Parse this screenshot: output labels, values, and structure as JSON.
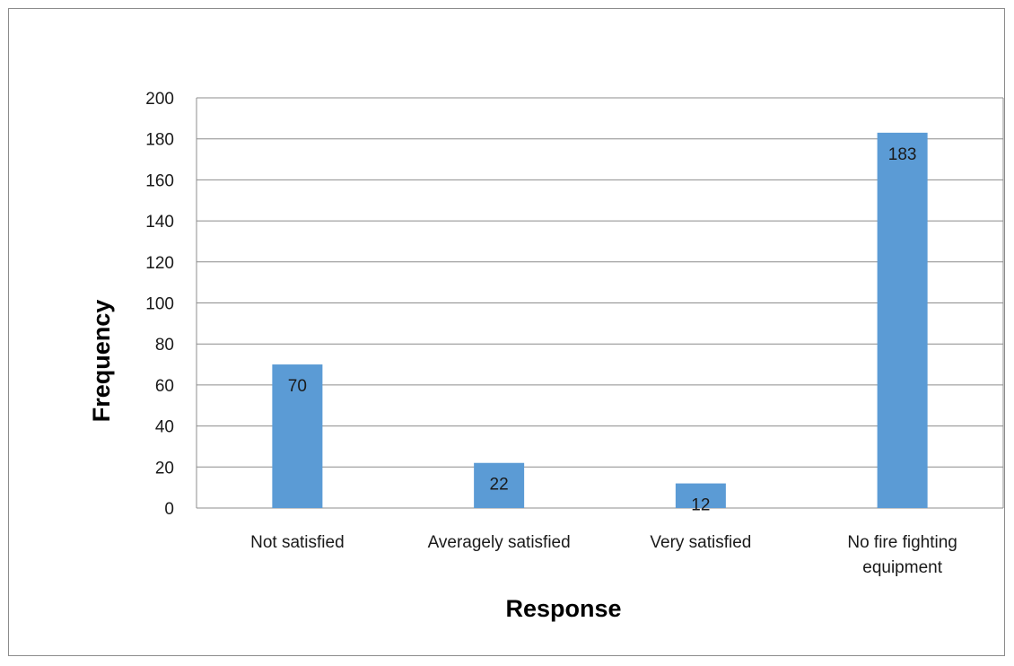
{
  "chart_data": {
    "type": "bar",
    "categories": [
      [
        "Not satisfied"
      ],
      [
        "Averagely satisfied"
      ],
      [
        "Very satisfied"
      ],
      [
        "No fire fighting",
        "equipment"
      ]
    ],
    "values": [
      70,
      22,
      12,
      183
    ],
    "xlabel": "Response",
    "ylabel": "Frequency",
    "ylim": [
      0,
      200
    ],
    "yticks": [
      0,
      20,
      40,
      60,
      80,
      100,
      120,
      140,
      160,
      180,
      200
    ],
    "grid": true,
    "legend": "none",
    "data_labels": true,
    "colors": {
      "bar": "#5B9BD5",
      "grid": "#8c8c8c",
      "axis": "#8c8c8c"
    }
  }
}
